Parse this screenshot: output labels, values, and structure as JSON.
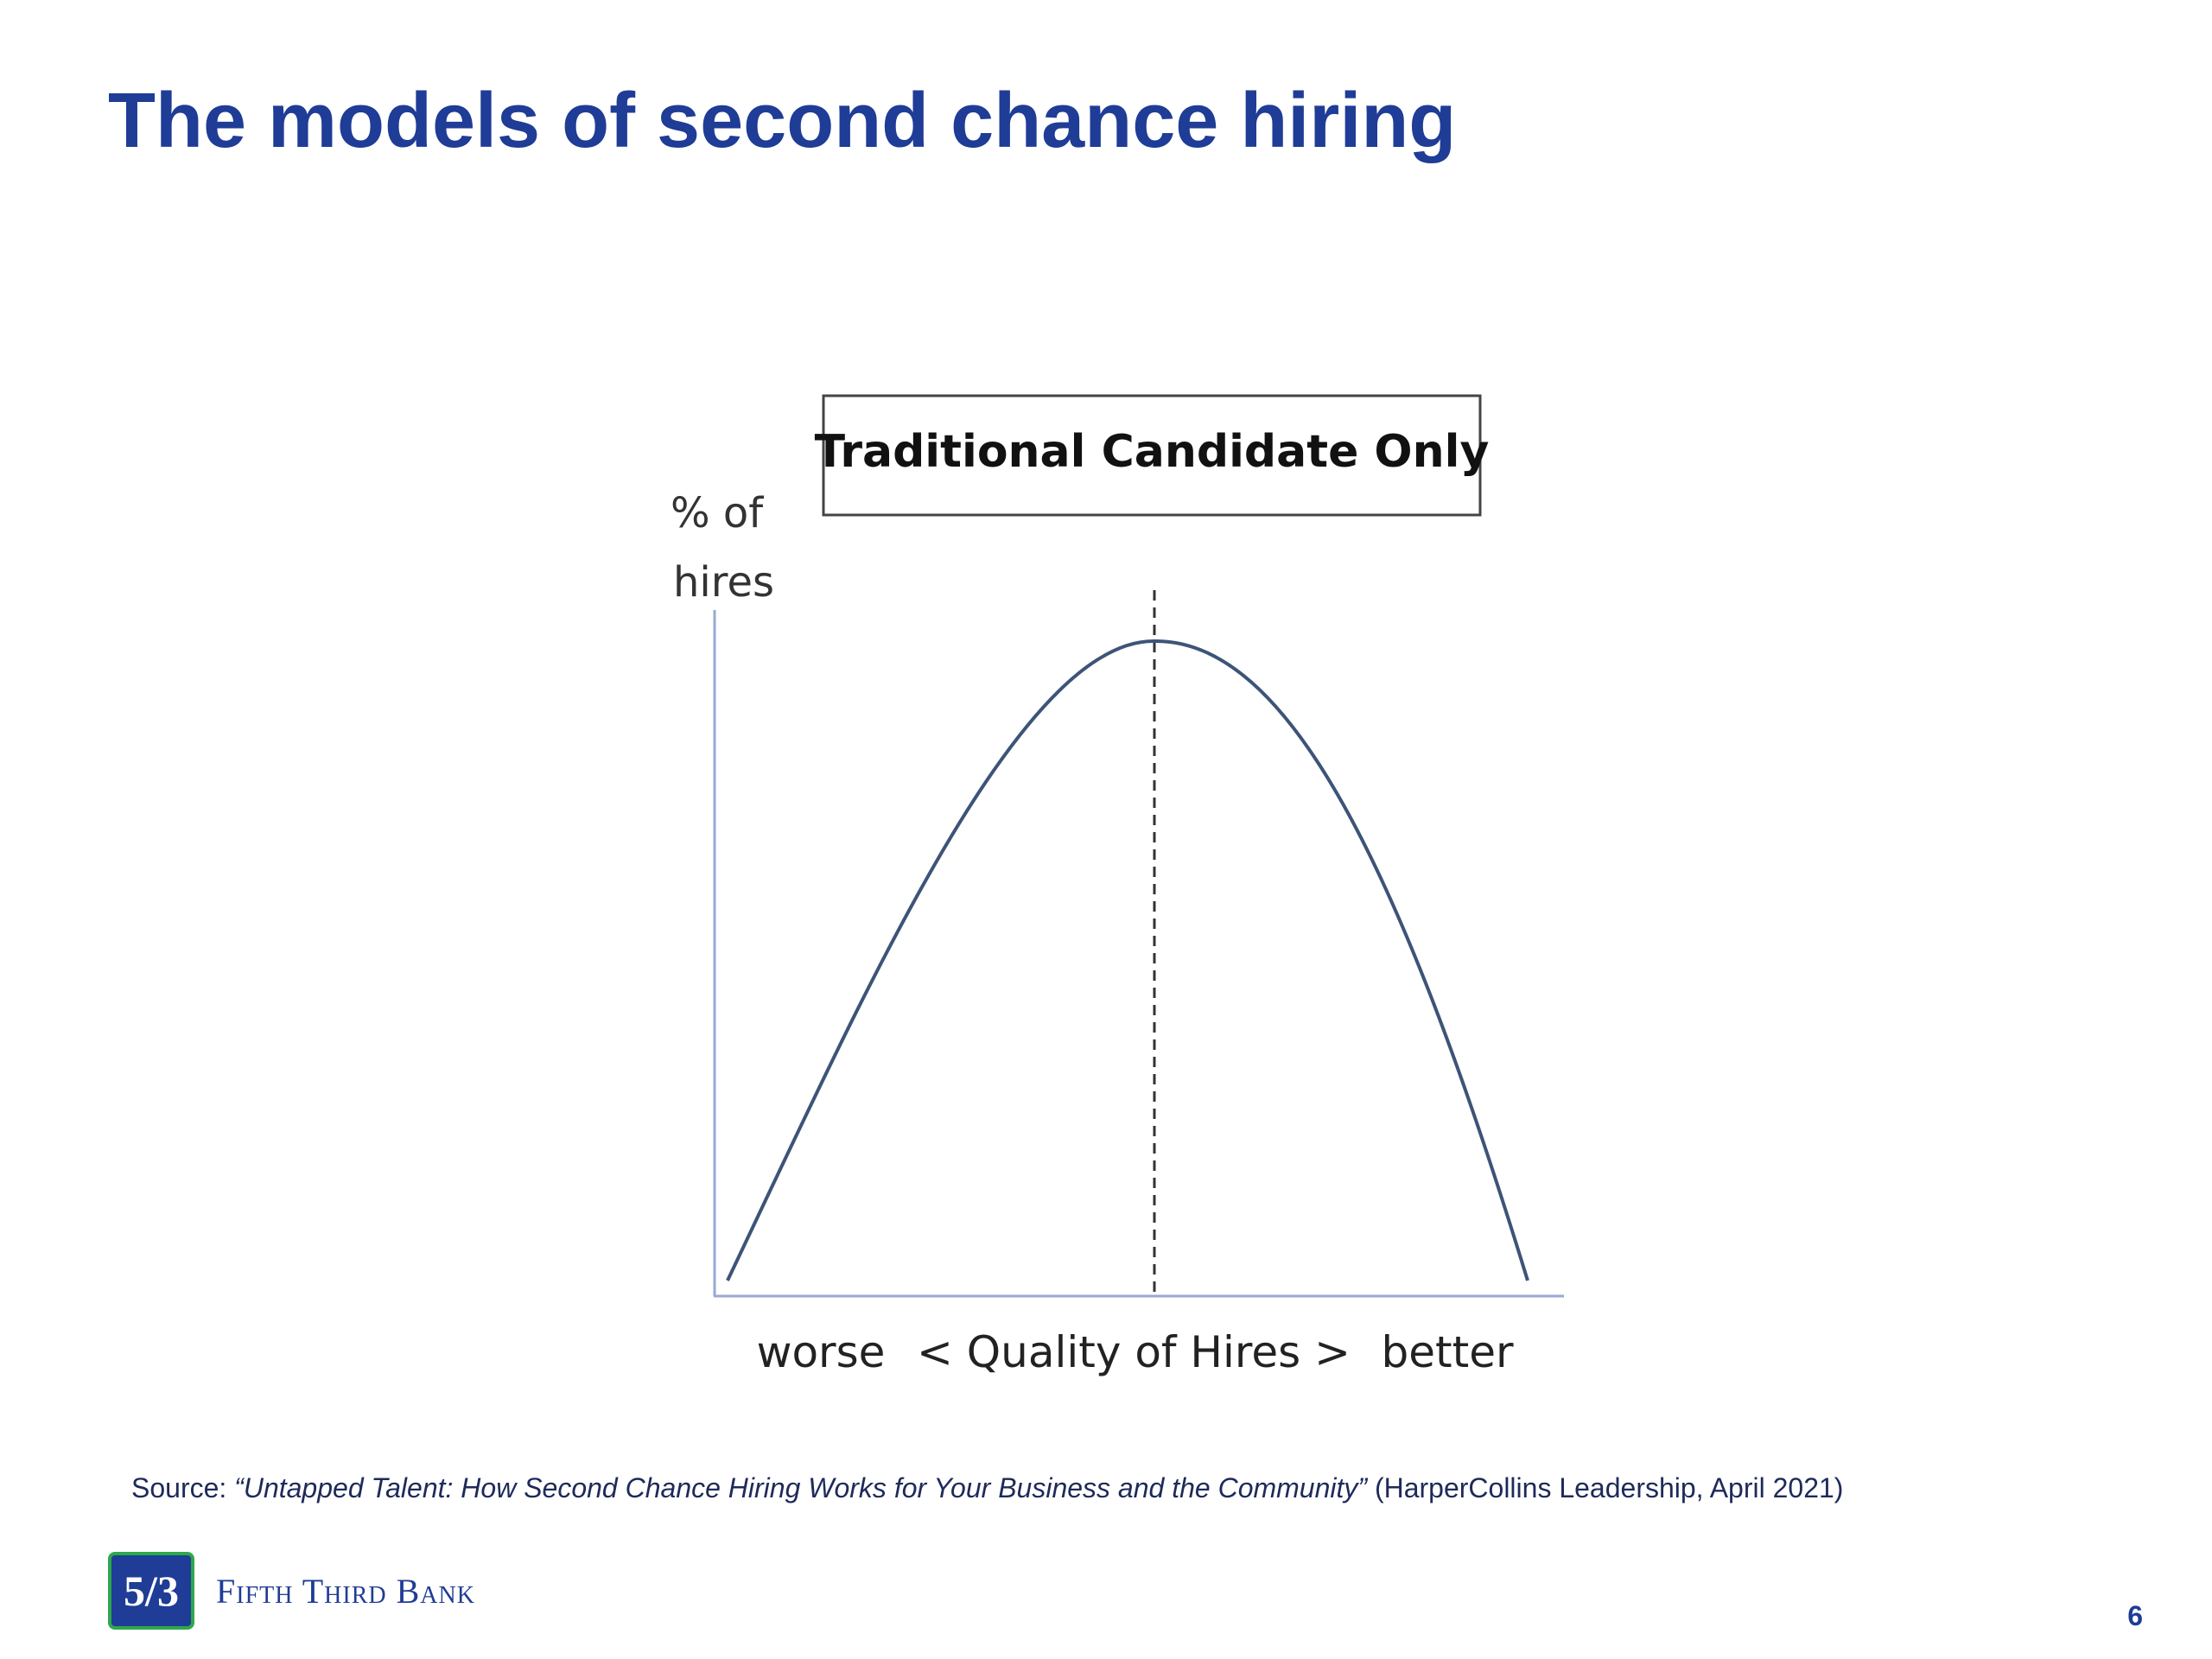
{
  "slide": {
    "title": "The models of second chance hiring",
    "page_number": "6"
  },
  "diagram": {
    "heading": "Traditional Candidate Only",
    "y_axis_label_line1": "% of",
    "y_axis_label_line2": "hires",
    "x_label_left": "worse",
    "x_label_center": "< Quality of Hires >",
    "x_label_right": "better",
    "curve": "bell-shaped",
    "marker": "dashed vertical line at peak",
    "colors": {
      "curve": "#3d5478",
      "axes": "#9aa9d4",
      "marker": "#333333"
    }
  },
  "source": {
    "prefix": "Source: ",
    "work": "“Untapped Talent: How Second Chance Hiring Works for Your Business and the Community”",
    "suffix": " (HarperCollins Leadership, April 2021)"
  },
  "branding": {
    "logo_icon": "fifth-third-logo-icon",
    "logo_glyph": "5/3",
    "name": "Fifth Third Bank",
    "color": "#1f3c96",
    "logo_border_color": "#2ea84a"
  }
}
